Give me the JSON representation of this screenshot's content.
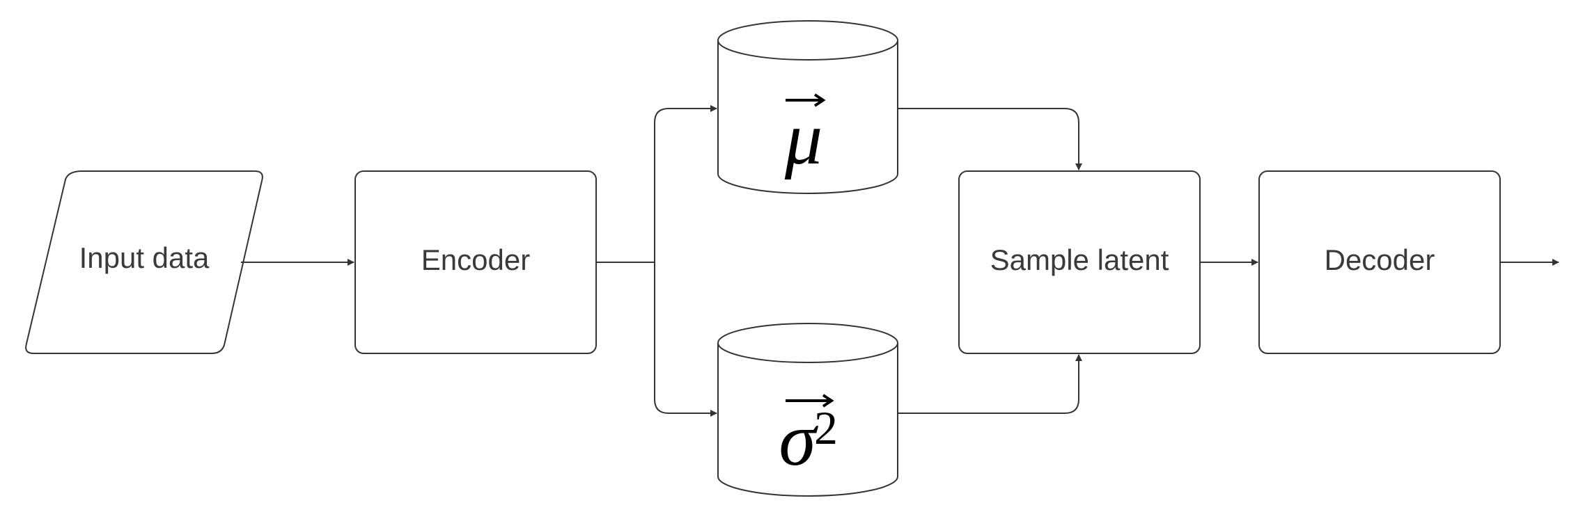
{
  "nodes": {
    "input": {
      "label": "Input data"
    },
    "encoder": {
      "label": "Encoder"
    },
    "mu": {
      "symbol": "μ"
    },
    "sigma": {
      "symbol": "σ",
      "exponent": "2"
    },
    "sample": {
      "label": "Sample latent"
    },
    "decoder": {
      "label": "Decoder"
    }
  },
  "colors": {
    "stroke": "#333333",
    "text": "#3a3a3a",
    "background": "#ffffff"
  }
}
